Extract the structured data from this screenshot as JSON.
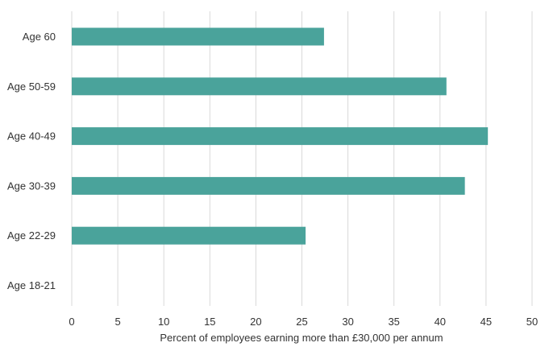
{
  "chart_data": {
    "type": "bar",
    "orientation": "horizontal",
    "title": "",
    "xlabel": "Percent of employees earning more than £30,000 per annum",
    "ylabel": "",
    "categories": [
      "Age 60",
      "Age 50-59",
      "Age 40-49",
      "Age 30-39",
      "Age 22-29",
      "Age 18-21"
    ],
    "values": [
      27.4,
      40.7,
      45.2,
      42.7,
      25.4,
      0
    ],
    "xlim": [
      0,
      50
    ],
    "xticks": [
      0,
      5,
      10,
      15,
      20,
      25,
      30,
      35,
      40,
      45,
      50
    ],
    "grid": "vertical",
    "legend": "none",
    "colors": {
      "bar": "#4aa39b",
      "grid": "#d9d9d9",
      "text": "#333333"
    }
  }
}
